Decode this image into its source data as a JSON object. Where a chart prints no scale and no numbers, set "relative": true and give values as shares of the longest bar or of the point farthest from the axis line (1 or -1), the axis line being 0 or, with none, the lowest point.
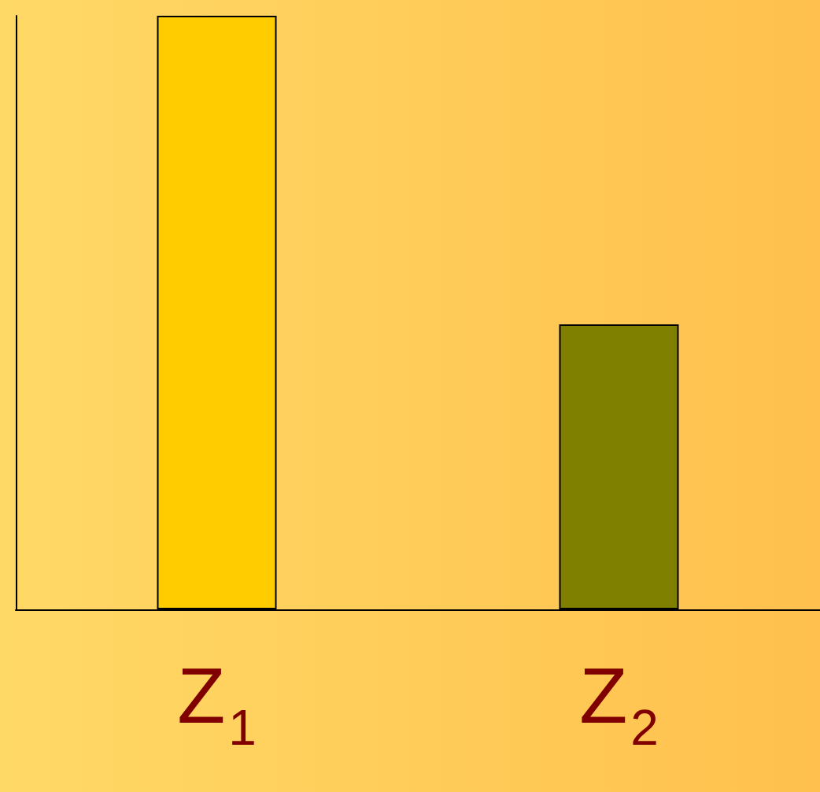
{
  "chart_data": {
    "type": "bar",
    "relative": true,
    "categories": [
      "Z$_{1}$",
      "Z$_{2}$"
    ],
    "values": [
      1,
      0.48
    ],
    "colors": [
      "#ffcc00",
      "#808000"
    ]
  }
}
